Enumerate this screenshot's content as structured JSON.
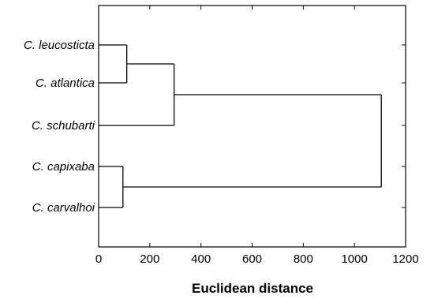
{
  "chart_data": {
    "type": "dendrogram",
    "title": "",
    "xlabel": "Euclidean distance",
    "xlim": [
      0,
      1200
    ],
    "xticks": [
      0,
      200,
      400,
      600,
      800,
      1000,
      1200
    ],
    "grid": false,
    "leaves": [
      "C. leucosticta",
      "C. atlantica",
      "C. schubarti",
      "C. capixaba",
      "C. carvalhoi"
    ],
    "merges": [
      {
        "id": "n1",
        "children": [
          "C. leucosticta",
          "C. atlantica"
        ],
        "distance": 110
      },
      {
        "id": "n2",
        "children": [
          "n1",
          "C. schubarti"
        ],
        "distance": 295
      },
      {
        "id": "n3",
        "children": [
          "C. capixaba",
          "C. carvalhoi"
        ],
        "distance": 95
      },
      {
        "id": "n4",
        "children": [
          "n2",
          "n3"
        ],
        "distance": 1105
      }
    ]
  }
}
